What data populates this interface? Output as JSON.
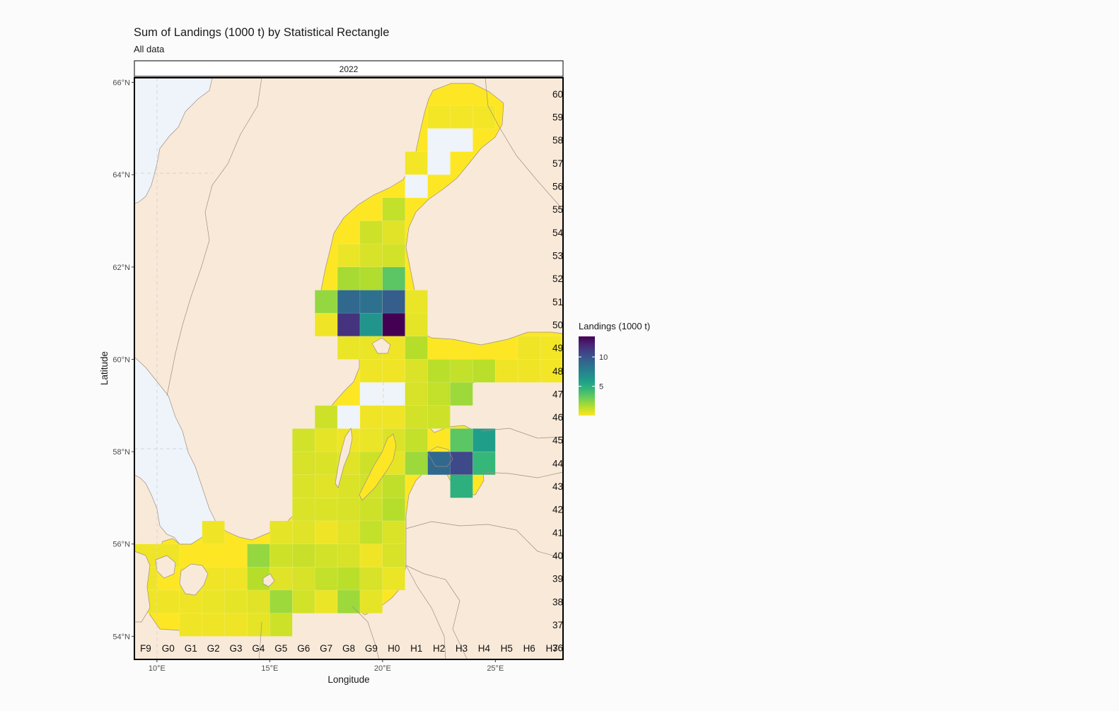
{
  "title": "Sum of Landings (1000 t) by Statistical Rectangle",
  "subtitle": "All data",
  "facet": "2022",
  "xlabel": "Longitude",
  "ylabel": "Latitude",
  "legend_title": "Landings (1000 t)",
  "colors": {
    "land": "#f9e9d8",
    "sea": "#eef4fa",
    "border": "#9b8f86",
    "nodata": "#eef4fa",
    "scale": [
      "#fde725",
      "#b5de2b",
      "#6ece58",
      "#35b779",
      "#1f9e89",
      "#26828e",
      "#31688e",
      "#3e4989",
      "#482878",
      "#440154"
    ]
  },
  "chart_data": {
    "type": "heatmap",
    "x_ticks": [
      "10°E",
      "15°E",
      "20°E",
      "25°E"
    ],
    "y_ticks": [
      "54°N",
      "56°N",
      "58°N",
      "60°N",
      "62°N",
      "64°N",
      "66°N"
    ],
    "xlim": [
      9,
      28
    ],
    "ylim": [
      53.5,
      66.1
    ],
    "col_labels": [
      "F9",
      "G0",
      "G1",
      "G2",
      "G3",
      "G4",
      "G5",
      "G6",
      "G7",
      "G8",
      "G9",
      "H0",
      "H1",
      "H2",
      "H3",
      "H4",
      "H5",
      "H6",
      "H7"
    ],
    "row_labels": [
      "36",
      "37",
      "38",
      "39",
      "40",
      "41",
      "42",
      "43",
      "44",
      "45",
      "46",
      "47",
      "48",
      "49",
      "50",
      "51",
      "52",
      "53",
      "54",
      "55",
      "56",
      "57",
      "58",
      "59",
      "60"
    ],
    "legend_ticks": [
      5,
      10
    ],
    "legend_range": [
      0,
      13.5
    ],
    "cells": [
      {
        "rect": "59H2",
        "value": 0.2
      },
      {
        "rect": "59H3",
        "value": 0.2
      },
      {
        "rect": "59H4",
        "value": 0.2
      },
      {
        "rect": "58H2",
        "value": null
      },
      {
        "rect": "58H3",
        "value": null
      },
      {
        "rect": "57H1",
        "value": 0.2
      },
      {
        "rect": "57H2",
        "value": null
      },
      {
        "rect": "56H1",
        "value": null
      },
      {
        "rect": "55H0",
        "value": 1.2
      },
      {
        "rect": "54G9",
        "value": 1.0
      },
      {
        "rect": "54H0",
        "value": 0.6
      },
      {
        "rect": "53G8",
        "value": 0.4
      },
      {
        "rect": "53G9",
        "value": 0.8
      },
      {
        "rect": "53H0",
        "value": 0.9
      },
      {
        "rect": "52G8",
        "value": 1.8
      },
      {
        "rect": "52G9",
        "value": 1.6
      },
      {
        "rect": "52H0",
        "value": 3.5
      },
      {
        "rect": "51G7",
        "value": 2.2
      },
      {
        "rect": "51G8",
        "value": 9.0
      },
      {
        "rect": "51G9",
        "value": 8.5
      },
      {
        "rect": "51H0",
        "value": 9.5
      },
      {
        "rect": "51H1",
        "value": 0.4
      },
      {
        "rect": "50G7",
        "value": 0.3
      },
      {
        "rect": "50G8",
        "value": 11.5
      },
      {
        "rect": "50G9",
        "value": 6.5
      },
      {
        "rect": "50H0",
        "value": 13.5
      },
      {
        "rect": "50H1",
        "value": 0.5
      },
      {
        "rect": "49G8",
        "value": 0.4
      },
      {
        "rect": "49G9",
        "value": 0.4
      },
      {
        "rect": "49H0",
        "value": 0.3
      },
      {
        "rect": "49H1",
        "value": 1.5
      },
      {
        "rect": "49H6",
        "value": 0.3
      },
      {
        "rect": "49H7",
        "value": 0.2
      },
      {
        "rect": "48G9",
        "value": 0.3
      },
      {
        "rect": "48H0",
        "value": 0.3
      },
      {
        "rect": "48H1",
        "value": 0.7
      },
      {
        "rect": "48H2",
        "value": 1.4
      },
      {
        "rect": "48H3",
        "value": 1.2
      },
      {
        "rect": "48H4",
        "value": 1.4
      },
      {
        "rect": "48H5",
        "value": 0.3
      },
      {
        "rect": "48H6",
        "value": 0.3
      },
      {
        "rect": "48H7",
        "value": 0.2
      },
      {
        "rect": "47G9",
        "value": null
      },
      {
        "rect": "47H0",
        "value": null
      },
      {
        "rect": "47H1",
        "value": 0.8
      },
      {
        "rect": "47H2",
        "value": 1.2
      },
      {
        "rect": "47H3",
        "value": 2.0
      },
      {
        "rect": "46G7",
        "value": 1.0
      },
      {
        "rect": "46G8",
        "value": null
      },
      {
        "rect": "46G9",
        "value": 0.3
      },
      {
        "rect": "46H0",
        "value": 0.3
      },
      {
        "rect": "46H1",
        "value": 0.9
      },
      {
        "rect": "46H2",
        "value": 1.0
      },
      {
        "rect": "45G6",
        "value": 0.9
      },
      {
        "rect": "45G7",
        "value": 0.5
      },
      {
        "rect": "45G8",
        "value": 0.3
      },
      {
        "rect": "45G9",
        "value": 0.4
      },
      {
        "rect": "45H0",
        "value": 0.7
      },
      {
        "rect": "45H1",
        "value": 1.2
      },
      {
        "rect": "45H3",
        "value": 3.5
      },
      {
        "rect": "45H4",
        "value": 6.0
      },
      {
        "rect": "44G6",
        "value": 0.8
      },
      {
        "rect": "44G7",
        "value": 0.7
      },
      {
        "rect": "44G8",
        "value": 0.6
      },
      {
        "rect": "44G9",
        "value": 1.0
      },
      {
        "rect": "44H0",
        "value": 0.5
      },
      {
        "rect": "44H1",
        "value": 2.0
      },
      {
        "rect": "44H2",
        "value": 9.0
      },
      {
        "rect": "44H3",
        "value": 10.5
      },
      {
        "rect": "44H4",
        "value": 4.5
      },
      {
        "rect": "43G6",
        "value": 0.7
      },
      {
        "rect": "43G7",
        "value": 0.6
      },
      {
        "rect": "43G8",
        "value": 0.7
      },
      {
        "rect": "43G9",
        "value": 0.9
      },
      {
        "rect": "43H0",
        "value": 1.3
      },
      {
        "rect": "43H3",
        "value": 5.0
      },
      {
        "rect": "42G6",
        "value": 0.7
      },
      {
        "rect": "42G7",
        "value": 0.7
      },
      {
        "rect": "42G8",
        "value": 0.8
      },
      {
        "rect": "42G9",
        "value": 1.0
      },
      {
        "rect": "42H0",
        "value": 1.5
      },
      {
        "rect": "41G5",
        "value": 0.5
      },
      {
        "rect": "41G6",
        "value": 0.6
      },
      {
        "rect": "41G7",
        "value": 0.3
      },
      {
        "rect": "41G8",
        "value": 0.6
      },
      {
        "rect": "41G9",
        "value": 1.2
      },
      {
        "rect": "41H0",
        "value": 0.7
      },
      {
        "rect": "40G4",
        "value": 2.2
      },
      {
        "rect": "40G5",
        "value": 1.0
      },
      {
        "rect": "40G6",
        "value": 1.1
      },
      {
        "rect": "40G7",
        "value": 0.9
      },
      {
        "rect": "40G8",
        "value": 0.8
      },
      {
        "rect": "40G9",
        "value": 0.3
      },
      {
        "rect": "40H0",
        "value": 0.8
      },
      {
        "rect": "39F9",
        "value": 0.3
      },
      {
        "rect": "39G1",
        "value": 0.3
      },
      {
        "rect": "39G2",
        "value": 0.3
      },
      {
        "rect": "39G3",
        "value": 0.3
      },
      {
        "rect": "39G4",
        "value": 1.5
      },
      {
        "rect": "39G5",
        "value": 0.6
      },
      {
        "rect": "39G6",
        "value": 0.8
      },
      {
        "rect": "39G7",
        "value": 1.2
      },
      {
        "rect": "39G8",
        "value": 1.4
      },
      {
        "rect": "39G9",
        "value": 0.8
      },
      {
        "rect": "39H0",
        "value": 0.4
      },
      {
        "rect": "38F9",
        "value": 0.3
      },
      {
        "rect": "38G0",
        "value": 0.3
      },
      {
        "rect": "38G1",
        "value": 0.3
      },
      {
        "rect": "38G2",
        "value": 0.4
      },
      {
        "rect": "38G3",
        "value": 0.5
      },
      {
        "rect": "38G4",
        "value": 0.6
      },
      {
        "rect": "38G5",
        "value": 2.0
      },
      {
        "rect": "38G6",
        "value": 0.9
      },
      {
        "rect": "38G7",
        "value": 0.4
      },
      {
        "rect": "38G8",
        "value": 2.0
      },
      {
        "rect": "38G9",
        "value": 0.5
      },
      {
        "rect": "37G1",
        "value": 0.3
      },
      {
        "rect": "37G2",
        "value": 0.3
      },
      {
        "rect": "37G3",
        "value": 0.3
      },
      {
        "rect": "37G4",
        "value": 0.5
      },
      {
        "rect": "37G5",
        "value": 1.0
      },
      {
        "rect": "41G2",
        "value": 0.3
      },
      {
        "rect": "40G0",
        "value": 0.3
      },
      {
        "rect": "40F9",
        "value": 0.3
      }
    ]
  }
}
